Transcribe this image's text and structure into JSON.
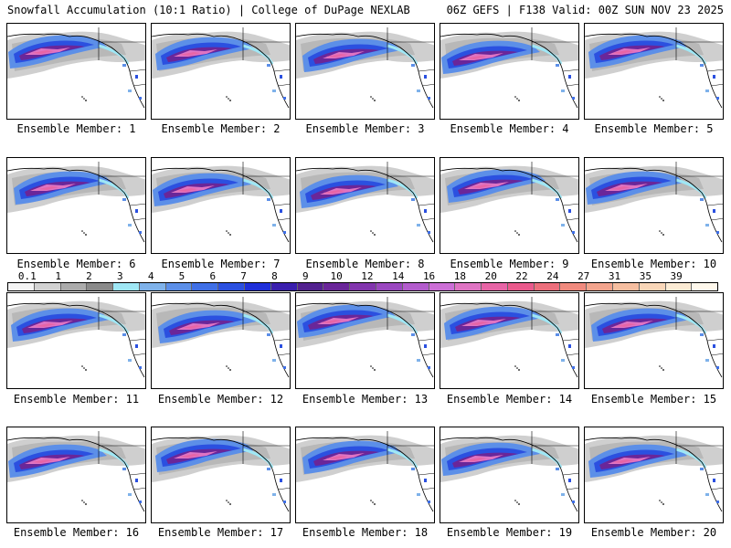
{
  "header": {
    "left": "Snowfall Accumulation (10:1 Ratio) | College of DuPage NEXLAB",
    "right": "06Z GEFS | F138 Valid: 00Z SUN NOV 23 2025"
  },
  "panels": [
    {
      "label": "Ensemble Member: 1"
    },
    {
      "label": "Ensemble Member: 2"
    },
    {
      "label": "Ensemble Member: 3"
    },
    {
      "label": "Ensemble Member: 4"
    },
    {
      "label": "Ensemble Member: 5"
    },
    {
      "label": "Ensemble Member: 6"
    },
    {
      "label": "Ensemble Member: 7"
    },
    {
      "label": "Ensemble Member: 8"
    },
    {
      "label": "Ensemble Member: 9"
    },
    {
      "label": "Ensemble Member: 10"
    },
    {
      "label": "Ensemble Member: 11"
    },
    {
      "label": "Ensemble Member: 12"
    },
    {
      "label": "Ensemble Member: 13"
    },
    {
      "label": "Ensemble Member: 14"
    },
    {
      "label": "Ensemble Member: 15"
    },
    {
      "label": "Ensemble Member: 16"
    },
    {
      "label": "Ensemble Member: 17"
    },
    {
      "label": "Ensemble Member: 18"
    },
    {
      "label": "Ensemble Member: 19"
    },
    {
      "label": "Ensemble Member: 20"
    }
  ],
  "legend": {
    "ticks": [
      "0.1",
      "1",
      "2",
      "3",
      "4",
      "5",
      "6",
      "7",
      "8",
      "9",
      "10",
      "12",
      "14",
      "16",
      "18",
      "20",
      "22",
      "24",
      "27",
      "31",
      "35",
      "39"
    ],
    "colors": [
      "#f4f4f4",
      "#d2d2d2",
      "#ababab",
      "#8a8a8a",
      "#9fe7f5",
      "#7fb2ea",
      "#5c8fe8",
      "#3f6fe6",
      "#2b50e0",
      "#1f2fd9",
      "#3a1fae",
      "#52218f",
      "#6a2699",
      "#8235ae",
      "#9a47c0",
      "#b35ccd",
      "#cc6fd6",
      "#df74c3",
      "#e765a6",
      "#ea5a8c",
      "#ec6f7c",
      "#f08a7e",
      "#f3a48d",
      "#f6bea0",
      "#f9d6b8",
      "#fcebd4",
      "#fff8ec"
    ]
  }
}
